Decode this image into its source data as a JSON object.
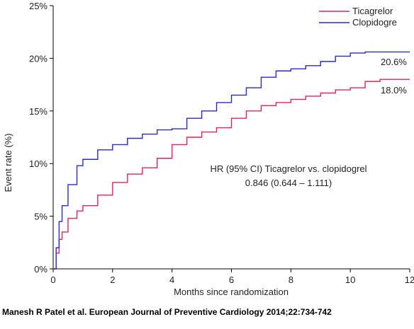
{
  "chart_data": {
    "type": "line",
    "step": true,
    "xlabel": "Months since randomization",
    "ylabel": "Event rate (%)",
    "xlim": [
      0,
      12
    ],
    "ylim": [
      0,
      25
    ],
    "x_ticks": [
      0,
      2,
      4,
      6,
      8,
      10,
      12
    ],
    "x_tick_labels": [
      "0",
      "2",
      "4",
      "6",
      "8",
      "10",
      "12"
    ],
    "y_ticks": [
      0,
      5,
      10,
      15,
      20,
      25
    ],
    "y_tick_labels": [
      "0%",
      "5%",
      "10%",
      "15%",
      "20%",
      "25%"
    ],
    "grid": false,
    "legend_position": "top-right",
    "series": [
      {
        "name": "Ticagrelor",
        "color": "#e0245e",
        "x": [
          0,
          0.1,
          0.2,
          0.3,
          0.5,
          0.8,
          1,
          1.5,
          2,
          2.5,
          3,
          3.5,
          4,
          4.5,
          5,
          5.5,
          6,
          6.5,
          7,
          7.5,
          8,
          8.5,
          9,
          9.5,
          10,
          10.5,
          11,
          11.5,
          12
        ],
        "y": [
          0,
          1.5,
          2.8,
          3.5,
          4.8,
          5.5,
          6,
          7,
          8.2,
          9,
          9.6,
          10.5,
          11.8,
          12.5,
          13,
          13.4,
          14.3,
          15,
          15.5,
          15.8,
          16.1,
          16.4,
          16.7,
          17,
          17.2,
          17.8,
          18,
          18,
          18
        ]
      },
      {
        "name": "Clopidogrel",
        "color": "#2a2ac8",
        "x": [
          0,
          0.1,
          0.2,
          0.3,
          0.5,
          0.8,
          1,
          1.5,
          2,
          2.5,
          3,
          3.5,
          4,
          4.5,
          5,
          5.5,
          6,
          6.5,
          7,
          7.5,
          8,
          8.5,
          9,
          9.5,
          10,
          10.5,
          11,
          11.5,
          12
        ],
        "y": [
          0,
          2,
          4.5,
          6,
          8,
          9.8,
          10.4,
          11.3,
          11.8,
          12.4,
          12.8,
          13.2,
          13.3,
          14.3,
          15,
          15.8,
          16.5,
          17.2,
          18.2,
          18.8,
          19,
          19.3,
          19.7,
          20.2,
          20.5,
          20.6,
          20.6,
          20.6,
          20.6
        ]
      }
    ],
    "end_labels": [
      "20.6%",
      "18.0%"
    ],
    "annotation": {
      "line1": "HR (95% CI) Ticagrelor vs. clopidogrel",
      "line2": "0.846 (0.644 – 1.111)"
    }
  },
  "legend": {
    "items": [
      {
        "label": "Ticagrelor",
        "color": "#e0245e"
      },
      {
        "label": "Clopidogre",
        "color": "#2a2ac8"
      }
    ]
  },
  "citation": "Manesh R Patel et al. European Journal of Preventive Cardiology 2014;22:734-742"
}
